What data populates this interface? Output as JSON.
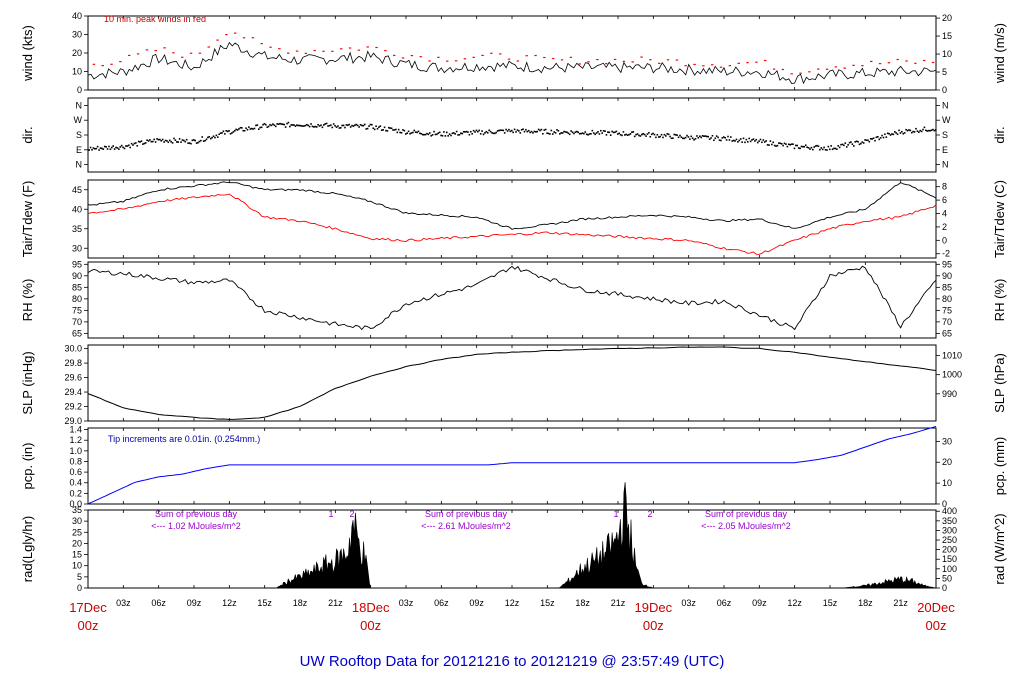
{
  "title": "UW Rooftop Data for 20121216  to  20121219 @ 23:57:49  (UTC)",
  "colors": {
    "series_black": "#000000",
    "dewpoint": "#ff0000",
    "precip": "#0000ff",
    "peak": "#ff0000",
    "title": "#0000cc",
    "dates": "#cc0000",
    "notes_purple": "#9900cc"
  },
  "x_axis": {
    "hour_ticks": [
      "03z",
      "06z",
      "09z",
      "12z",
      "15z",
      "18z",
      "21z",
      "03z",
      "06z",
      "09z",
      "12z",
      "15z",
      "18z",
      "21z",
      "03z",
      "06z",
      "09z",
      "12z",
      "15z",
      "18z",
      "21z"
    ],
    "date_labels": [
      {
        "day": "17Dec",
        "hour": "00z"
      },
      {
        "day": "18Dec",
        "hour": "00z"
      },
      {
        "day": "19Dec",
        "hour": "00z"
      },
      {
        "day": "20Dec",
        "hour": "00z"
      }
    ]
  },
  "panels": {
    "wind": {
      "left_label": "wind (kts)",
      "right_label": "wind (m/s)",
      "left_ticks": [
        "0",
        "10",
        "20",
        "30",
        "40"
      ],
      "right_ticks": [
        "0",
        "5",
        "10",
        "15",
        "20"
      ],
      "note": "10 min. peak winds in red"
    },
    "dir": {
      "left_label": "dir.",
      "right_label": "dir.",
      "left_ticks": [
        "N",
        "E",
        "S",
        "W",
        "N"
      ],
      "right_ticks": [
        "N",
        "E",
        "S",
        "W",
        "N"
      ]
    },
    "temp": {
      "left_label": "Tair/Tdew (F)",
      "right_label": "Tair/Tdew (C)",
      "left_ticks": [
        "30",
        "35",
        "40",
        "45"
      ],
      "right_ticks": [
        "-2",
        "0",
        "2",
        "4",
        "6",
        "8"
      ]
    },
    "rh": {
      "left_label": "RH (%)",
      "right_label": "RH (%)",
      "left_ticks": [
        "65",
        "70",
        "75",
        "80",
        "85",
        "90",
        "95"
      ],
      "right_ticks": [
        "65",
        "70",
        "75",
        "80",
        "85",
        "90",
        "95"
      ]
    },
    "slp": {
      "left_label": "SLP (inHg)",
      "right_label": "SLP (hPa)",
      "left_ticks": [
        "29.0",
        "29.2",
        "29.4",
        "29.6",
        "29.8",
        "30.0"
      ],
      "right_ticks": [
        "990",
        "1000",
        "1010"
      ]
    },
    "pcp": {
      "left_label": "pcp. (in)",
      "right_label": "pcp. (mm)",
      "left_ticks": [
        "0.0",
        "0.2",
        "0.4",
        "0.6",
        "0.8",
        "1.0",
        "1.2",
        "1.4"
      ],
      "right_ticks": [
        "0",
        "10",
        "20",
        "30"
      ],
      "note": "Tip increments are 0.01in. (0.254mm.)"
    },
    "rad": {
      "left_label": "rad(Lgly/hr)",
      "right_label": "rad (W/m^2)",
      "left_ticks": [
        "0",
        "5",
        "10",
        "15",
        "20",
        "25",
        "30",
        "35"
      ],
      "right_ticks": [
        "0",
        "50",
        "100",
        "150",
        "200",
        "250",
        "300",
        "350",
        "400"
      ],
      "notes": [
        {
          "line1": "Sum of previous day",
          "line2": "<--- 1.02 MJoules/m^2"
        },
        {
          "line1": "Sum of previous day",
          "line2": "<--- 2.61 MJoules/m^2"
        },
        {
          "line1": "Sum of previous day",
          "line2": "<--- 2.05 MJoules/m^2"
        }
      ],
      "markers": [
        "1",
        "2",
        "1",
        "2"
      ]
    }
  },
  "chart_data": [
    {
      "type": "line",
      "title": "",
      "ylabel": "wind (kts)",
      "x_unit": "hours since 17Dec 00z",
      "ylim": [
        0,
        40
      ],
      "series": [
        {
          "x": [
            0,
            3,
            6,
            9,
            12,
            15,
            18,
            21,
            24,
            27,
            30,
            33,
            36,
            39,
            42,
            45,
            48,
            51,
            54,
            57,
            60,
            63,
            66,
            69,
            72
          ],
          "values": [
            8,
            10,
            17,
            12,
            25,
            18,
            16,
            17,
            18,
            14,
            12,
            13,
            13,
            12,
            12,
            12,
            12,
            11,
            10,
            10,
            6,
            8,
            9,
            10,
            10
          ]
        },
        {
          "name": "10 min. peak winds in red",
          "x": [
            0,
            3,
            6,
            9,
            12,
            15,
            18,
            21,
            24,
            27,
            30,
            33,
            36,
            39,
            42,
            45,
            48,
            51,
            54,
            57,
            60,
            63,
            66,
            69,
            72
          ],
          "values": [
            14,
            16,
            22,
            18,
            33,
            23,
            21,
            22,
            23,
            19,
            17,
            18,
            18,
            16,
            16,
            16,
            16,
            15,
            14,
            15,
            10,
            13,
            14,
            15,
            15
          ]
        }
      ]
    },
    {
      "type": "scatter",
      "ylabel": "dir.",
      "x_unit": "hours since 17Dec 00z",
      "y_unit": "degrees",
      "ylim": [
        0,
        360
      ],
      "series": [
        {
          "x": [
            0,
            3,
            6,
            9,
            12,
            15,
            18,
            21,
            24,
            27,
            30,
            33,
            36,
            39,
            42,
            45,
            48,
            51,
            54,
            57,
            60,
            63,
            66,
            69,
            72
          ],
          "values": [
            95,
            110,
            150,
            140,
            200,
            235,
            245,
            235,
            230,
            200,
            185,
            195,
            205,
            200,
            195,
            190,
            180,
            165,
            160,
            140,
            110,
            100,
            140,
            200,
            220
          ]
        }
      ]
    },
    {
      "type": "line",
      "ylabel": "Tair/Tdew (F)",
      "x_unit": "hours since 17Dec 00z",
      "ylim": [
        27.5,
        47.5
      ],
      "series": [
        {
          "x": [
            0,
            3,
            6,
            9,
            12,
            15,
            18,
            21,
            24,
            27,
            30,
            33,
            36,
            39,
            42,
            45,
            48,
            51,
            54,
            57,
            60,
            63,
            66,
            69,
            72
          ],
          "values": [
            41,
            42,
            45,
            46,
            47,
            45,
            45,
            44,
            42,
            39,
            38.5,
            38,
            35,
            36,
            37.5,
            38,
            38.5,
            38,
            37,
            37.5,
            35,
            38,
            40,
            47,
            43
          ]
        },
        {
          "x": [
            0,
            3,
            6,
            9,
            12,
            15,
            18,
            21,
            24,
            27,
            30,
            33,
            36,
            39,
            42,
            45,
            48,
            51,
            54,
            57,
            60,
            63,
            66,
            69,
            72
          ],
          "values": [
            39,
            40,
            42,
            43,
            44,
            38,
            37,
            35,
            32.5,
            32,
            32.5,
            33,
            33.5,
            34,
            33.5,
            33,
            32.5,
            32,
            30,
            28.5,
            32,
            35,
            37,
            38,
            41
          ]
        }
      ]
    },
    {
      "type": "line",
      "ylabel": "RH (%)",
      "x_unit": "hours since 17Dec 00z",
      "ylim": [
        63,
        96
      ],
      "series": [
        {
          "x": [
            0,
            3,
            6,
            9,
            12,
            15,
            18,
            21,
            24,
            27,
            30,
            33,
            36,
            39,
            42,
            45,
            48,
            51,
            54,
            57,
            60,
            63,
            66,
            69,
            72
          ],
          "values": [
            92,
            91,
            89,
            87,
            88,
            75,
            72,
            69,
            67,
            78,
            82,
            86,
            94,
            89,
            84,
            82,
            80,
            78,
            79,
            73,
            67,
            90,
            94,
            68,
            88
          ]
        }
      ]
    },
    {
      "type": "line",
      "ylabel": "SLP (inHg)",
      "x_unit": "hours since 17Dec 00z",
      "ylim": [
        29.0,
        30.05
      ],
      "series": [
        {
          "x": [
            0,
            3,
            6,
            9,
            12,
            15,
            18,
            21,
            24,
            27,
            30,
            33,
            36,
            39,
            42,
            45,
            48,
            51,
            54,
            57,
            60,
            63,
            66,
            69,
            72
          ],
          "values": [
            29.38,
            29.18,
            29.09,
            29.05,
            29.02,
            29.05,
            29.2,
            29.45,
            29.62,
            29.75,
            29.85,
            29.92,
            29.95,
            29.97,
            29.99,
            30.0,
            30.01,
            30.02,
            30.02,
            30.0,
            29.95,
            29.88,
            29.82,
            29.76,
            29.7
          ]
        }
      ]
    },
    {
      "type": "line",
      "ylabel": "pcp. (in)",
      "x_unit": "hours since 17Dec 00z",
      "ylim": [
        0,
        1.4
      ],
      "series": [
        {
          "x": [
            0,
            2,
            4,
            6,
            8,
            10,
            12,
            24,
            34,
            36,
            48,
            60,
            61,
            62,
            64,
            66,
            68,
            70,
            72
          ],
          "values": [
            0.0,
            0.2,
            0.4,
            0.5,
            0.55,
            0.65,
            0.72,
            0.72,
            0.72,
            0.76,
            0.76,
            0.76,
            0.79,
            0.82,
            0.9,
            1.05,
            1.2,
            1.3,
            1.43
          ]
        }
      ]
    },
    {
      "type": "area",
      "ylabel": "rad(Lgly/hr)",
      "x_unit": "hours since 17Dec 00z",
      "ylim": [
        0,
        35
      ],
      "series": [
        {
          "x": [
            0,
            16,
            17,
            18,
            19,
            20,
            21,
            22,
            22.5,
            23,
            23.5,
            24,
            40,
            41,
            42,
            43,
            44,
            45,
            45.5,
            46,
            46.5,
            47,
            48,
            64,
            66,
            68,
            69,
            70,
            71,
            72
          ],
          "values": [
            0,
            0,
            3,
            5,
            7,
            10,
            12,
            16,
            28,
            20,
            14,
            0,
            0,
            4,
            9,
            12,
            16,
            22,
            36,
            25,
            10,
            2,
            0,
            0,
            1,
            3,
            4,
            3,
            1,
            0
          ]
        }
      ]
    }
  ]
}
